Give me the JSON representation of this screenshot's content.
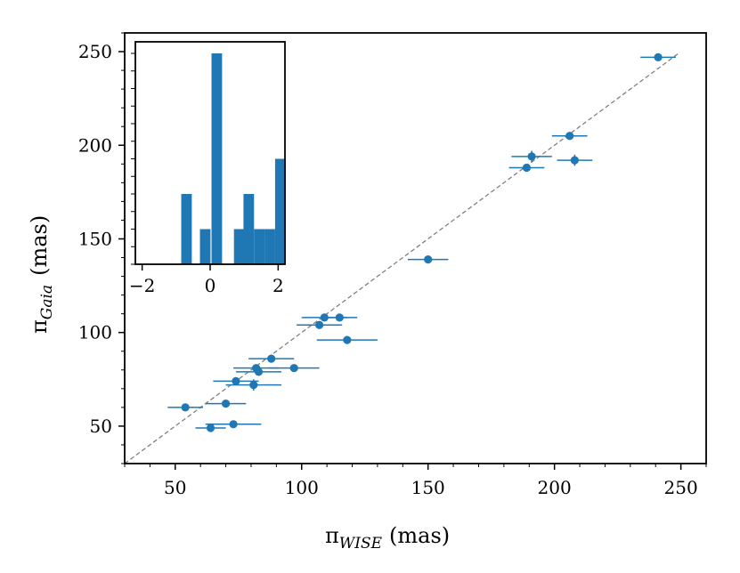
{
  "colors": {
    "series": "#1f77b4",
    "reference_line": "#808080",
    "frame": "#000000"
  },
  "chart_data": [
    {
      "type": "scatter",
      "name": "main",
      "xlabel": {
        "symbol": "π",
        "subscript": "WISE",
        "unit": "(mas)"
      },
      "ylabel": {
        "symbol": "π",
        "subscript": "Gaia",
        "unit": "(mas)"
      },
      "xlim": [
        30,
        260
      ],
      "ylim": [
        30,
        260
      ],
      "xticks": [
        50,
        100,
        150,
        200,
        250
      ],
      "yticks": [
        50,
        100,
        150,
        200,
        250
      ],
      "xtick_labels": [
        "50",
        "100",
        "150",
        "200",
        "250"
      ],
      "ytick_labels": [
        "50",
        "100",
        "150",
        "200",
        "250"
      ],
      "reference_line": {
        "style": "dashed",
        "from": [
          30,
          30
        ],
        "to": [
          249,
          249
        ]
      },
      "points": [
        {
          "x": 241,
          "y": 247,
          "xerr": 7,
          "yerr": 1
        },
        {
          "x": 206,
          "y": 205,
          "xerr": 7,
          "yerr": 1
        },
        {
          "x": 191,
          "y": 194,
          "xerr": 8,
          "yerr": 3
        },
        {
          "x": 189,
          "y": 188,
          "xerr": 7,
          "yerr": 1
        },
        {
          "x": 208,
          "y": 192,
          "xerr": 7,
          "yerr": 3
        },
        {
          "x": 150,
          "y": 139,
          "xerr": 8,
          "yerr": 1
        },
        {
          "x": 109,
          "y": 108,
          "xerr": 9,
          "yerr": 1
        },
        {
          "x": 115,
          "y": 108,
          "xerr": 7,
          "yerr": 1
        },
        {
          "x": 107,
          "y": 104,
          "xerr": 9,
          "yerr": 2
        },
        {
          "x": 118,
          "y": 96,
          "xerr": 12,
          "yerr": 1
        },
        {
          "x": 88,
          "y": 86,
          "xerr": 9,
          "yerr": 1
        },
        {
          "x": 97,
          "y": 81,
          "xerr": 10,
          "yerr": 1
        },
        {
          "x": 82,
          "y": 81,
          "xerr": 9,
          "yerr": 1
        },
        {
          "x": 83,
          "y": 79,
          "xerr": 9,
          "yerr": 1
        },
        {
          "x": 74,
          "y": 74,
          "xerr": 9,
          "yerr": 2
        },
        {
          "x": 81,
          "y": 72,
          "xerr": 11,
          "yerr": 3
        },
        {
          "x": 54,
          "y": 60,
          "xerr": 7,
          "yerr": 1
        },
        {
          "x": 70,
          "y": 62,
          "xerr": 8,
          "yerr": 1
        },
        {
          "x": 64,
          "y": 49,
          "xerr": 6,
          "yerr": 1
        },
        {
          "x": 73,
          "y": 51,
          "xerr": 11,
          "yerr": 1
        }
      ]
    },
    {
      "type": "bar",
      "name": "inset-histogram",
      "xlim": [
        -2.2,
        2.2
      ],
      "xticks": [
        -2,
        0,
        2
      ],
      "xtick_labels": [
        "−2",
        "0",
        "2"
      ],
      "bin_width": 0.31,
      "bins": [
        {
          "x0": -0.85,
          "count": 2
        },
        {
          "x0": -0.3,
          "count": 1
        },
        {
          "x0": 0.04,
          "count": 6
        },
        {
          "x0": 0.7,
          "count": 1
        },
        {
          "x0": 0.98,
          "count": 2
        },
        {
          "x0": 1.29,
          "count": 1
        },
        {
          "x0": 1.6,
          "count": 1
        },
        {
          "x0": 1.91,
          "count": 3
        }
      ]
    }
  ]
}
